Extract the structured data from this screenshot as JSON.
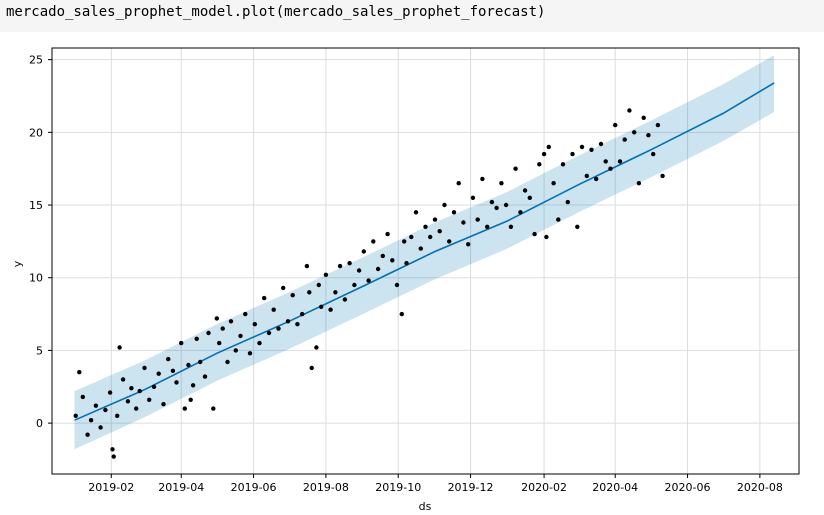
{
  "code_cell": {
    "text": "mercado_sales_prophet_model.plot(mercado_sales_prophet_forecast)"
  },
  "colors": {
    "forecast_line": "#0072B2",
    "uncertainty_band": "#0072B2",
    "observed_points": "#000000",
    "grid": "#dddddd"
  },
  "chart_data": {
    "type": "scatter",
    "xlabel": "ds",
    "ylabel": "y",
    "x_ticks": [
      "2019-02",
      "2019-04",
      "2019-06",
      "2019-08",
      "2019-10",
      "2019-12",
      "2020-02",
      "2020-04",
      "2020-06",
      "2020-08"
    ],
    "y_ticks": [
      0,
      5,
      10,
      15,
      20,
      25
    ],
    "xlim": [
      "2018-12-13",
      "2020-09-03"
    ],
    "ylim": [
      -3.5,
      25.8
    ],
    "grid": true,
    "series": [
      {
        "kind": "forecast_line",
        "x": [
          "2019-01-01",
          "2019-03-01",
          "2019-05-01",
          "2019-07-01",
          "2019-09-01",
          "2019-11-01",
          "2020-01-01",
          "2020-03-01",
          "2020-05-01",
          "2020-07-01",
          "2020-08-13"
        ],
        "values": [
          0.2,
          2.3,
          4.8,
          7.0,
          9.4,
          11.8,
          13.9,
          16.4,
          18.8,
          21.3,
          23.4
        ]
      },
      {
        "kind": "uncertainty_band",
        "x": [
          "2019-01-01",
          "2019-03-01",
          "2019-05-01",
          "2019-07-01",
          "2019-09-01",
          "2019-11-01",
          "2020-01-01",
          "2020-03-01",
          "2020-05-01",
          "2020-07-01",
          "2020-08-13"
        ],
        "lower": [
          -1.8,
          0.4,
          2.9,
          5.1,
          7.5,
          9.9,
          12.0,
          14.5,
          16.9,
          19.4,
          21.4
        ],
        "upper": [
          2.2,
          4.3,
          6.8,
          9.0,
          11.4,
          13.8,
          15.9,
          18.4,
          20.8,
          23.3,
          25.3
        ]
      },
      {
        "kind": "observed_points",
        "x": [
          "2019-01-02",
          "2019-01-05",
          "2019-01-08",
          "2019-01-12",
          "2019-01-15",
          "2019-01-19",
          "2019-01-23",
          "2019-01-27",
          "2019-01-31",
          "2019-02-02",
          "2019-02-03",
          "2019-02-06",
          "2019-02-08",
          "2019-02-11",
          "2019-02-15",
          "2019-02-18",
          "2019-02-22",
          "2019-02-25",
          "2019-03-01",
          "2019-03-05",
          "2019-03-09",
          "2019-03-13",
          "2019-03-17",
          "2019-03-21",
          "2019-03-25",
          "2019-03-28",
          "2019-04-01",
          "2019-04-04",
          "2019-04-07",
          "2019-04-09",
          "2019-04-11",
          "2019-04-14",
          "2019-04-17",
          "2019-04-21",
          "2019-04-24",
          "2019-04-28",
          "2019-05-01",
          "2019-05-03",
          "2019-05-06",
          "2019-05-10",
          "2019-05-13",
          "2019-05-17",
          "2019-05-21",
          "2019-05-25",
          "2019-05-29",
          "2019-06-02",
          "2019-06-06",
          "2019-06-10",
          "2019-06-14",
          "2019-06-18",
          "2019-06-22",
          "2019-06-26",
          "2019-06-30",
          "2019-07-04",
          "2019-07-08",
          "2019-07-12",
          "2019-07-16",
          "2019-07-18",
          "2019-07-20",
          "2019-07-24",
          "2019-07-26",
          "2019-07-28",
          "2019-08-01",
          "2019-08-05",
          "2019-08-09",
          "2019-08-13",
          "2019-08-17",
          "2019-08-21",
          "2019-08-25",
          "2019-08-29",
          "2019-09-02",
          "2019-09-06",
          "2019-09-10",
          "2019-09-14",
          "2019-09-18",
          "2019-09-22",
          "2019-09-26",
          "2019-09-30",
          "2019-10-04",
          "2019-10-06",
          "2019-10-08",
          "2019-10-12",
          "2019-10-16",
          "2019-10-20",
          "2019-10-24",
          "2019-10-28",
          "2019-11-01",
          "2019-11-05",
          "2019-11-09",
          "2019-11-13",
          "2019-11-17",
          "2019-11-21",
          "2019-11-25",
          "2019-11-29",
          "2019-12-03",
          "2019-12-07",
          "2019-12-11",
          "2019-12-15",
          "2019-12-19",
          "2019-12-23",
          "2019-12-27",
          "2019-12-31",
          "2020-01-04",
          "2020-01-08",
          "2020-01-12",
          "2020-01-16",
          "2020-01-20",
          "2020-01-24",
          "2020-01-28",
          "2020-02-01",
          "2020-02-03",
          "2020-02-05",
          "2020-02-09",
          "2020-02-13",
          "2020-02-17",
          "2020-02-21",
          "2020-02-25",
          "2020-02-29",
          "2020-03-04",
          "2020-03-08",
          "2020-03-12",
          "2020-03-16",
          "2020-03-20",
          "2020-03-24",
          "2020-03-28",
          "2020-04-01",
          "2020-04-05",
          "2020-04-09",
          "2020-04-13",
          "2020-04-17",
          "2020-04-21",
          "2020-04-25",
          "2020-04-29",
          "2020-05-03",
          "2020-05-07",
          "2020-05-11"
        ],
        "values": [
          0.5,
          3.5,
          1.8,
          -0.8,
          0.2,
          1.2,
          -0.3,
          0.9,
          2.1,
          -1.8,
          -2.3,
          0.5,
          5.2,
          3.0,
          1.5,
          2.4,
          1.0,
          2.2,
          3.8,
          1.6,
          2.5,
          3.4,
          1.3,
          4.4,
          3.6,
          2.8,
          5.5,
          1.0,
          4.0,
          1.6,
          2.6,
          5.8,
          4.2,
          3.2,
          6.2,
          1.0,
          7.2,
          5.5,
          6.5,
          4.2,
          7.0,
          5.0,
          6.0,
          7.5,
          4.8,
          6.8,
          5.5,
          8.6,
          6.2,
          7.8,
          6.5,
          9.3,
          7.0,
          8.8,
          6.8,
          7.5,
          10.8,
          9.0,
          3.8,
          5.2,
          9.5,
          8.0,
          10.2,
          7.8,
          9.0,
          10.8,
          8.5,
          11.0,
          9.5,
          10.5,
          11.8,
          9.8,
          12.5,
          10.6,
          11.5,
          13.0,
          11.2,
          9.5,
          7.5,
          12.5,
          11.0,
          12.8,
          14.5,
          12.0,
          13.5,
          12.8,
          14.0,
          13.2,
          15.0,
          12.5,
          14.5,
          16.5,
          13.8,
          12.3,
          15.5,
          14.0,
          16.8,
          13.5,
          15.2,
          14.8,
          16.5,
          15.0,
          13.5,
          17.5,
          14.5,
          16.0,
          15.5,
          13.0,
          17.8,
          18.5,
          12.8,
          19.0,
          16.5,
          14.0,
          17.8,
          15.2,
          18.5,
          13.5,
          19.0,
          17.0,
          18.8,
          16.8,
          19.2,
          18.0,
          17.5,
          20.5,
          18.0,
          19.5,
          21.5,
          20.0,
          16.5,
          21.0,
          19.8,
          18.5,
          20.5,
          17.0
        ]
      }
    ]
  }
}
